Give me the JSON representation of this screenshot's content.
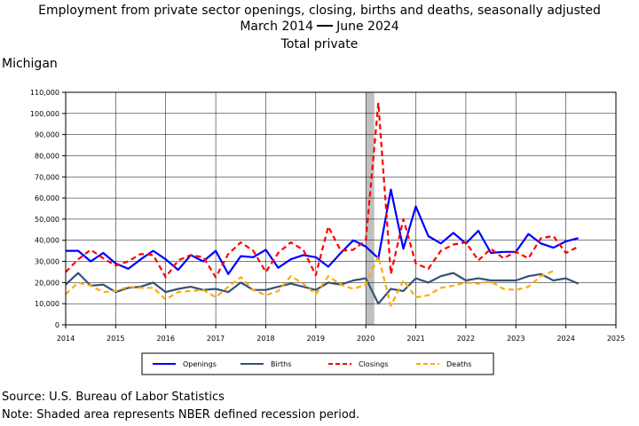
{
  "title": {
    "line1": "Employment from private sector openings, closing, births and deaths, seasonally adjusted",
    "line2_start": "March 2014",
    "line2_end": "June 2024",
    "line3": "Total private"
  },
  "region_label": "Michigan",
  "footer": {
    "source": "Source: U.S. Bureau of Labor Statistics",
    "note": "Note: Shaded area represents NBER defined recession period."
  },
  "colors": {
    "Openings": "#0000ff",
    "Births": "#34527a",
    "Closings": "#ff0000",
    "Deaths": "#ffaa00",
    "recession": "#c0c0c0"
  },
  "chart_data": {
    "type": "line",
    "xlim": [
      2014,
      2025
    ],
    "ylim": [
      0,
      110000
    ],
    "x_ticks": [
      2014,
      2015,
      2016,
      2017,
      2018,
      2019,
      2020,
      2021,
      2022,
      2023,
      2024,
      2025
    ],
    "y_ticks": [
      0,
      10000,
      20000,
      30000,
      40000,
      50000,
      60000,
      70000,
      80000,
      90000,
      100000,
      110000
    ],
    "y_tick_labels": [
      "0",
      "10,000",
      "20,000",
      "30,000",
      "40,000",
      "50,000",
      "60,000",
      "70,000",
      "80,000",
      "90,000",
      "100,000",
      "110,000"
    ],
    "grid": true,
    "legend_position": "bottom",
    "recession": [
      2020.0,
      2020.17
    ],
    "x": [
      2014.0,
      2014.25,
      2014.5,
      2014.75,
      2015.0,
      2015.25,
      2015.5,
      2015.75,
      2016.0,
      2016.25,
      2016.5,
      2016.75,
      2017.0,
      2017.25,
      2017.5,
      2017.75,
      2018.0,
      2018.25,
      2018.5,
      2018.75,
      2019.0,
      2019.25,
      2019.5,
      2019.75,
      2020.0,
      2020.25,
      2020.5,
      2020.75,
      2021.0,
      2021.25,
      2021.5,
      2021.75,
      2022.0,
      2022.25,
      2022.5,
      2022.75,
      2023.0,
      2023.25,
      2023.5,
      2023.75,
      2024.0,
      2024.25
    ],
    "series": [
      {
        "name": "Openings",
        "style": "solid",
        "values": [
          35000,
          35000,
          30000,
          34000,
          29000,
          26500,
          31000,
          35000,
          31000,
          26000,
          33000,
          30000,
          35000,
          24000,
          32500,
          32000,
          35500,
          27000,
          31000,
          33000,
          32000,
          27500,
          34000,
          40000,
          37000,
          31500,
          64000,
          36000,
          56000,
          42000,
          38500,
          43500,
          38500,
          44500,
          34000,
          34500,
          34500,
          43000,
          38500,
          36500,
          39500,
          41000
        ]
      },
      {
        "name": "Births",
        "style": "solid",
        "values": [
          19000,
          24500,
          18500,
          19000,
          15500,
          17500,
          18000,
          20000,
          15500,
          17000,
          18000,
          16500,
          17000,
          15500,
          20000,
          16500,
          16500,
          18000,
          19500,
          18000,
          16500,
          20000,
          19000,
          21000,
          22000,
          10000,
          17000,
          16000,
          22000,
          20000,
          23000,
          24500,
          21000,
          22000,
          21000,
          21000,
          21000,
          23000,
          24000,
          21000,
          22000,
          19500
        ]
      },
      {
        "name": "Closings",
        "style": "dashed",
        "values": [
          25000,
          31000,
          35500,
          31500,
          28000,
          30000,
          33500,
          33000,
          22500,
          30500,
          33000,
          32000,
          22500,
          33500,
          39000,
          35000,
          25000,
          34000,
          39000,
          35500,
          23500,
          46500,
          35000,
          35500,
          40000,
          105000,
          24000,
          50000,
          29000,
          26500,
          35000,
          38000,
          39000,
          30500,
          36000,
          31500,
          34500,
          31500,
          41000,
          42000,
          34000,
          37000
        ]
      },
      {
        "name": "Deaths",
        "style": "dashed",
        "values": [
          14500,
          20000,
          18500,
          15500,
          16000,
          18000,
          17500,
          17500,
          12000,
          15500,
          16000,
          16500,
          13000,
          18000,
          22500,
          16500,
          14000,
          16000,
          23000,
          19500,
          14500,
          23000,
          19000,
          17000,
          19000,
          32500,
          9000,
          21000,
          13000,
          14000,
          17500,
          18500,
          20000,
          19500,
          20500,
          17000,
          16500,
          18000,
          23000,
          25500,
          null,
          null
        ]
      }
    ]
  }
}
